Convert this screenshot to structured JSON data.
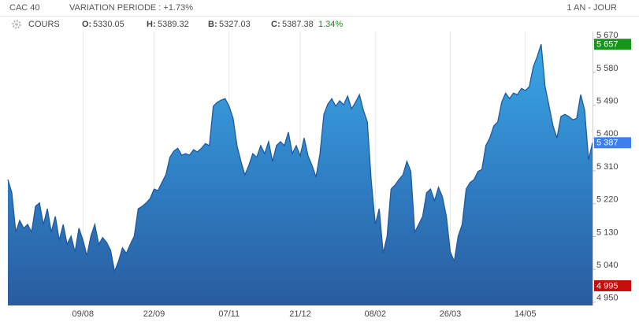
{
  "chart_data": {
    "type": "area",
    "title": "CAC 40",
    "subtitle": "VARIATION PERIODE : +1.73%",
    "period": "1 AN - JOUR",
    "quote": {
      "label": "COURS",
      "open_label": "O:",
      "open": 5330.05,
      "high_label": "H:",
      "high": 5389.32,
      "low_label": "B:",
      "low": 5327.03,
      "close_label": "C:",
      "close": 5387.38,
      "change_label": "1.34%"
    },
    "color": "#1f5a9e",
    "categories": [
      null,
      null,
      null,
      null,
      null,
      null,
      null,
      null,
      null,
      null,
      null,
      null,
      null,
      null,
      null,
      null,
      null,
      null,
      null,
      "09/08",
      null,
      null,
      null,
      null,
      null,
      null,
      null,
      null,
      null,
      null,
      null,
      null,
      null,
      null,
      null,
      null,
      null,
      "22/09",
      null,
      null,
      null,
      null,
      null,
      null,
      null,
      null,
      null,
      null,
      null,
      null,
      null,
      null,
      null,
      null,
      null,
      null,
      "07/11",
      null,
      null,
      null,
      null,
      null,
      null,
      null,
      null,
      null,
      null,
      null,
      null,
      null,
      null,
      null,
      null,
      null,
      "21/12",
      null,
      null,
      null,
      null,
      null,
      null,
      null,
      null,
      null,
      null,
      null,
      null,
      null,
      null,
      null,
      null,
      null,
      null,
      "08/02",
      null,
      null,
      null,
      null,
      null,
      null,
      null,
      null,
      null,
      null,
      null,
      null,
      null,
      null,
      null,
      null,
      null,
      null,
      "26/03",
      null,
      null,
      null,
      null,
      null,
      null,
      null,
      null,
      null,
      null,
      null,
      null,
      null,
      null,
      null,
      null,
      null,
      null,
      "14/05",
      null,
      null,
      null,
      null,
      null,
      null,
      null,
      null,
      null,
      null,
      null,
      null,
      null,
      null,
      null,
      null,
      null
    ],
    "values": [
      5286,
      5250,
      5142,
      5174,
      5153,
      5163,
      5142,
      5213,
      5222,
      5163,
      5206,
      5142,
      5185,
      5120,
      5163,
      5109,
      5131,
      5088,
      5153,
      5120,
      5077,
      5131,
      5163,
      5109,
      5127,
      5114,
      5092,
      5034,
      5062,
      5099,
      5084,
      5109,
      5131,
      5206,
      5213,
      5222,
      5234,
      5260,
      5256,
      5278,
      5299,
      5347,
      5364,
      5372,
      5353,
      5357,
      5353,
      5368,
      5362,
      5372,
      5385,
      5379,
      5487,
      5498,
      5504,
      5508,
      5487,
      5454,
      5379,
      5336,
      5299,
      5325,
      5357,
      5347,
      5379,
      5357,
      5390,
      5336,
      5379,
      5390,
      5379,
      5416,
      5357,
      5379,
      5351,
      5400,
      5351,
      5325,
      5293,
      5357,
      5465,
      5493,
      5508,
      5487,
      5502,
      5491,
      5515,
      5480,
      5498,
      5519,
      5476,
      5444,
      5282,
      5163,
      5206,
      5084,
      5131,
      5260,
      5271,
      5286,
      5299,
      5336,
      5308,
      5142,
      5163,
      5185,
      5250,
      5260,
      5228,
      5265,
      5239,
      5185,
      5088,
      5062,
      5131,
      5163,
      5260,
      5278,
      5286,
      5308,
      5314,
      5379,
      5400,
      5433,
      5444,
      5498,
      5523,
      5508,
      5523,
      5519,
      5536,
      5530,
      5541,
      5595,
      5623,
      5657,
      5541,
      5487,
      5433,
      5400,
      5459,
      5465,
      5459,
      5450,
      5454,
      5519,
      5476,
      5340,
      5387
    ],
    "ylim": [
      4941,
      5692
    ],
    "yticks": [
      {
        "value": 5670,
        "label": "5 670"
      },
      {
        "value": 5580,
        "label": "5 580"
      },
      {
        "value": 5490,
        "label": "5 490"
      },
      {
        "value": 5400,
        "label": "5 400"
      },
      {
        "value": 5310,
        "label": "5 310"
      },
      {
        "value": 5220,
        "label": "5 220"
      },
      {
        "value": 5130,
        "label": "5 130"
      },
      {
        "value": 5040,
        "label": "5 040"
      },
      {
        "value": 4950,
        "label": "4 950"
      }
    ],
    "markers": [
      {
        "value": 5657,
        "label": "5 657",
        "color": "#17951b"
      },
      {
        "value": 5387,
        "label": "5 387",
        "color": "#3b7ff0"
      },
      {
        "value": 4995,
        "label": "4 995",
        "color": "#c80d0d"
      }
    ],
    "grid": true
  }
}
